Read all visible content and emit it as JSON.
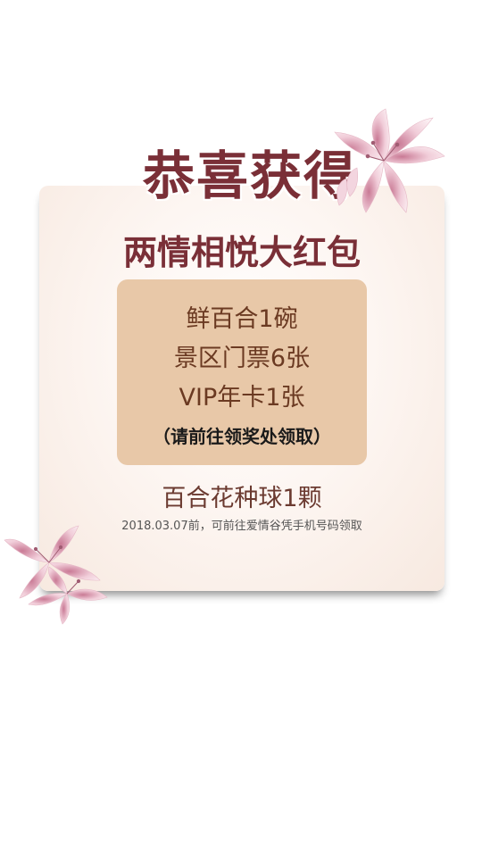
{
  "heading": {
    "title": "恭喜获得",
    "subtitle": "两情相悦大红包"
  },
  "prize_box": {
    "items": [
      "鲜百合1碗",
      "景区门票6张",
      "VIP年卡1张"
    ],
    "note": "（请前往领奖处领取）"
  },
  "bonus": {
    "label": "百合花种球1颗",
    "claim_info": "2018.03.07前，可前往爱情谷凭手机号码领取"
  },
  "colors": {
    "title": "#7a2f37",
    "prize_box_bg": "#e8c8a8",
    "prize_text": "#6b3a22",
    "card_bg": "#fdf6f2"
  },
  "icons": {
    "top_flower": "lily-flower-icon",
    "bottom_flower": "lily-flower-icon"
  }
}
